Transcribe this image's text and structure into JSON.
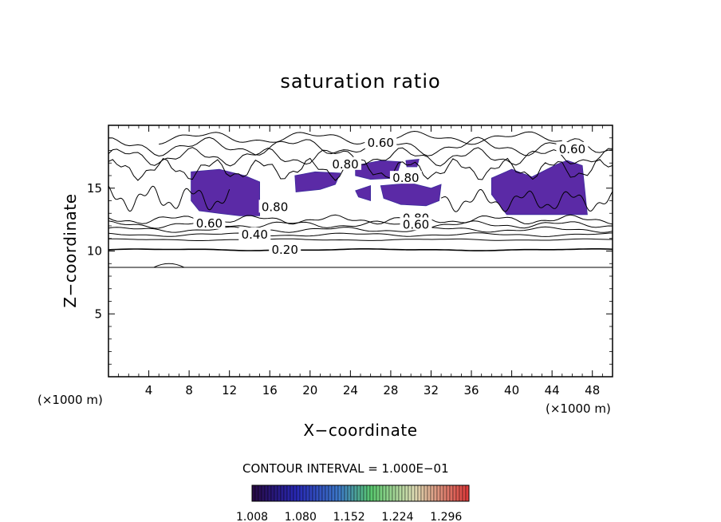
{
  "chart_data": {
    "type": "heatmap",
    "title": "saturation ratio",
    "xlabel": "X−coordinate",
    "ylabel": "Z−coordinate",
    "x_unit_left": "(×1000 m)",
    "x_unit_right": "(×1000 m)",
    "xlim": [
      0,
      50
    ],
    "ylim": [
      0,
      20
    ],
    "x_ticks": [
      4,
      8,
      12,
      16,
      20,
      24,
      28,
      32,
      36,
      40,
      44,
      48
    ],
    "y_ticks": [
      5,
      10,
      15
    ],
    "contour_interval_text": "CONTOUR INTERVAL = 1.000E−01",
    "contour_labels": [
      {
        "text": "0.20",
        "x": 17.5,
        "z": 10.1
      },
      {
        "text": "0.40",
        "x": 14.5,
        "z": 11.3
      },
      {
        "text": "0.60",
        "x": 10.0,
        "z": 12.2
      },
      {
        "text": "0.80",
        "x": 16.5,
        "z": 13.5
      },
      {
        "text": "0.60",
        "x": 27.0,
        "z": 18.6
      },
      {
        "text": "0.80",
        "x": 23.5,
        "z": 16.9
      },
      {
        "text": "0.80",
        "x": 29.5,
        "z": 15.8
      },
      {
        "text": "0.80",
        "x": 30.5,
        "z": 12.6
      },
      {
        "text": "0.60",
        "x": 30.5,
        "z": 12.1
      },
      {
        "text": "0.60",
        "x": 46.0,
        "z": 18.1
      }
    ],
    "supersaturated_regions": [
      [
        [
          8.2,
          16.3
        ],
        [
          11.0,
          16.5
        ],
        [
          13.5,
          16.0
        ],
        [
          15.0,
          15.5
        ],
        [
          15.0,
          12.8
        ],
        [
          13.0,
          12.8
        ],
        [
          11.0,
          13.0
        ],
        [
          9.0,
          13.2
        ],
        [
          8.2,
          14.0
        ]
      ],
      [
        [
          18.5,
          16.0
        ],
        [
          20.5,
          16.3
        ],
        [
          23.0,
          16.2
        ],
        [
          22.5,
          15.3
        ],
        [
          21.0,
          14.9
        ],
        [
          18.6,
          14.7
        ]
      ],
      [
        [
          24.5,
          16.8
        ],
        [
          27.0,
          17.2
        ],
        [
          29.0,
          17.1
        ],
        [
          28.5,
          15.8
        ],
        [
          26.0,
          15.7
        ],
        [
          24.5,
          16.0
        ]
      ],
      [
        [
          29.5,
          17.2
        ],
        [
          30.8,
          17.3
        ],
        [
          30.6,
          16.7
        ],
        [
          29.6,
          16.7
        ]
      ],
      [
        [
          24.5,
          14.8
        ],
        [
          26.0,
          15.2
        ],
        [
          26.0,
          14.0
        ],
        [
          24.8,
          14.3
        ]
      ],
      [
        [
          27.0,
          15.2
        ],
        [
          30.0,
          15.4
        ],
        [
          32.0,
          15.0
        ],
        [
          33.0,
          15.3
        ],
        [
          32.8,
          14.0
        ],
        [
          31.5,
          13.6
        ],
        [
          29.0,
          13.7
        ],
        [
          27.3,
          14.2
        ]
      ],
      [
        [
          38.0,
          15.8
        ],
        [
          40.0,
          16.5
        ],
        [
          42.0,
          15.9
        ],
        [
          44.5,
          16.9
        ],
        [
          45.5,
          17.2
        ],
        [
          47.0,
          16.8
        ],
        [
          47.5,
          12.9
        ],
        [
          39.5,
          12.9
        ],
        [
          38.0,
          14.5
        ]
      ]
    ],
    "colorbar": {
      "tick_labels": [
        "1.008",
        "1.080",
        "1.152",
        "1.224",
        "1.296"
      ],
      "range": [
        1.008,
        1.33
      ]
    }
  },
  "colors": {
    "fill": "#5b2aa6",
    "fill_dark": "#3a2b9c"
  }
}
